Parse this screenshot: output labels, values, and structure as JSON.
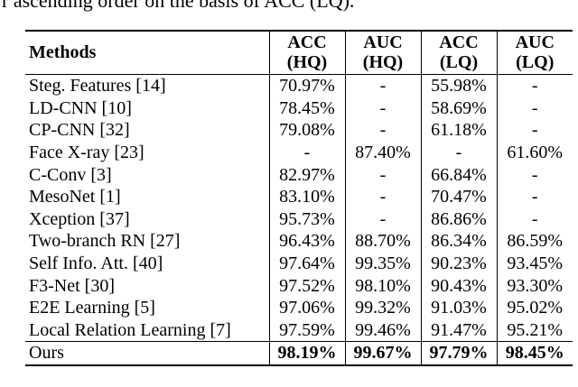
{
  "caption": "r ascending order on the basis of ACC (LQ).",
  "table": {
    "headers": [
      {
        "line1": "Methods",
        "line2": ""
      },
      {
        "line1": "ACC",
        "line2": "(HQ)"
      },
      {
        "line1": "AUC",
        "line2": "(HQ)"
      },
      {
        "line1": "ACC",
        "line2": "(LQ)"
      },
      {
        "line1": "AUC",
        "line2": "(LQ)"
      }
    ],
    "rows": [
      {
        "method": "Steg. Features  [14]",
        "acc_hq": "70.97%",
        "auc_hq": "-",
        "acc_lq": "55.98%",
        "auc_lq": "-"
      },
      {
        "method": "LD-CNN  [10]",
        "acc_hq": "78.45%",
        "auc_hq": "-",
        "acc_lq": "58.69%",
        "auc_lq": "-"
      },
      {
        "method": "CP-CNN  [32]",
        "acc_hq": "79.08%",
        "auc_hq": "-",
        "acc_lq": "61.18%",
        "auc_lq": "-"
      },
      {
        "method": "Face X-ray  [23]",
        "acc_hq": "-",
        "auc_hq": "87.40%",
        "acc_lq": "-",
        "auc_lq": "61.60%"
      },
      {
        "method": "C-Conv  [3]",
        "acc_hq": "82.97%",
        "auc_hq": "-",
        "acc_lq": "66.84%",
        "auc_lq": "-"
      },
      {
        "method": "MesoNet  [1]",
        "acc_hq": "83.10%",
        "auc_hq": "-",
        "acc_lq": "70.47%",
        "auc_lq": "-"
      },
      {
        "method": "Xception  [37]",
        "acc_hq": "95.73%",
        "auc_hq": "-",
        "acc_lq": "86.86%",
        "auc_lq": "-"
      },
      {
        "method": "Two-branch RN  [27]",
        "acc_hq": "96.43%",
        "auc_hq": "88.70%",
        "acc_lq": "86.34%",
        "auc_lq": "86.59%"
      },
      {
        "method": "Self Info. Att. [40]",
        "acc_hq": "97.64%",
        "auc_hq": "99.35%",
        "acc_lq": "90.23%",
        "auc_lq": "93.45%"
      },
      {
        "method": "F3-Net  [30]",
        "acc_hq": "97.52%",
        "auc_hq": "98.10%",
        "acc_lq": "90.43%",
        "auc_lq": "93.30%"
      },
      {
        "method": "E2E Learning  [5]",
        "acc_hq": "97.06%",
        "auc_hq": "99.32%",
        "acc_lq": "91.03%",
        "auc_lq": "95.02%"
      },
      {
        "method": "Local Relation Learning [7]",
        "acc_hq": "97.59%",
        "auc_hq": "99.46%",
        "acc_lq": "91.47%",
        "auc_lq": "95.21%"
      }
    ],
    "ours": {
      "method": "Ours",
      "acc_hq": "98.19%",
      "auc_hq": "99.67%",
      "acc_lq": "97.79%",
      "auc_lq": "98.45%"
    }
  }
}
